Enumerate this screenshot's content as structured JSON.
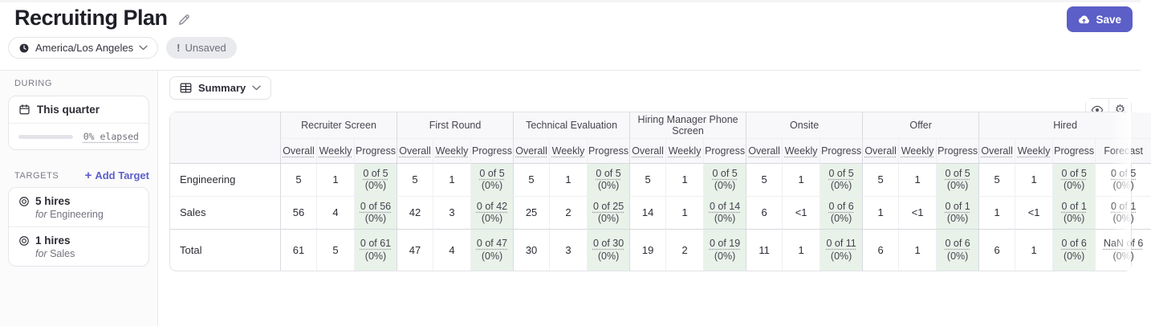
{
  "header": {
    "title": "Recruiting Plan",
    "timezone": "America/Los Angeles",
    "unsaved_prefix": "!",
    "unsaved_label": "Unsaved",
    "save_label": "Save"
  },
  "sidebar": {
    "during": {
      "label": "DURING",
      "period": "This quarter",
      "elapsed_text": "0% elapsed",
      "elapsed_percent": 0
    },
    "targets": {
      "label": "TARGETS",
      "add_label": "Add Target",
      "items": [
        {
          "title": "5 hires",
          "subtitle": {
            "prefix": "for",
            "name": "Engineering"
          }
        },
        {
          "title": "1 hires",
          "subtitle": {
            "prefix": "for",
            "name": "Sales"
          }
        }
      ]
    }
  },
  "toolbar": {
    "view_label": "Summary"
  },
  "table": {
    "stages": [
      "Recruiter Screen",
      "First Round",
      "Technical Evaluation",
      "Hiring Manager Phone Screen",
      "Onsite",
      "Offer",
      "Hired"
    ],
    "subheaders": {
      "overall": "Overall",
      "weekly": "Weekly",
      "progress": "Progress",
      "forecast": "Forecast"
    },
    "rows": [
      {
        "label": "Engineering",
        "cells": [
          {
            "overall": "5",
            "weekly": "1",
            "progress": "0 of 5",
            "pct": "(0%)"
          },
          {
            "overall": "5",
            "weekly": "1",
            "progress": "0 of 5",
            "pct": "(0%)"
          },
          {
            "overall": "5",
            "weekly": "1",
            "progress": "0 of 5",
            "pct": "(0%)"
          },
          {
            "overall": "5",
            "weekly": "1",
            "progress": "0 of 5",
            "pct": "(0%)"
          },
          {
            "overall": "5",
            "weekly": "1",
            "progress": "0 of 5",
            "pct": "(0%)"
          },
          {
            "overall": "5",
            "weekly": "1",
            "progress": "0 of 5",
            "pct": "(0%)"
          },
          {
            "overall": "5",
            "weekly": "1",
            "progress": "0 of 5",
            "pct": "(0%)"
          }
        ],
        "forecast": {
          "value": "0 of 5",
          "pct": "(0%)"
        }
      },
      {
        "label": "Sales",
        "cells": [
          {
            "overall": "56",
            "weekly": "4",
            "progress": "0 of 56",
            "pct": "(0%)"
          },
          {
            "overall": "42",
            "weekly": "3",
            "progress": "0 of 42",
            "pct": "(0%)"
          },
          {
            "overall": "25",
            "weekly": "2",
            "progress": "0 of 25",
            "pct": "(0%)"
          },
          {
            "overall": "14",
            "weekly": "1",
            "progress": "0 of 14",
            "pct": "(0%)"
          },
          {
            "overall": "6",
            "weekly": "<1",
            "progress": "0 of 6",
            "pct": "(0%)"
          },
          {
            "overall": "1",
            "weekly": "<1",
            "progress": "0 of 1",
            "pct": "(0%)"
          },
          {
            "overall": "1",
            "weekly": "<1",
            "progress": "0 of 1",
            "pct": "(0%)"
          }
        ],
        "forecast": {
          "value": "0 of 1",
          "pct": "(0%)"
        }
      },
      {
        "label": "Total",
        "cells": [
          {
            "overall": "61",
            "weekly": "5",
            "progress": "0 of 61",
            "pct": "(0%)"
          },
          {
            "overall": "47",
            "weekly": "4",
            "progress": "0 of 47",
            "pct": "(0%)"
          },
          {
            "overall": "30",
            "weekly": "3",
            "progress": "0 of 30",
            "pct": "(0%)"
          },
          {
            "overall": "19",
            "weekly": "2",
            "progress": "0 of 19",
            "pct": "(0%)"
          },
          {
            "overall": "11",
            "weekly": "1",
            "progress": "0 of 11",
            "pct": "(0%)"
          },
          {
            "overall": "6",
            "weekly": "1",
            "progress": "0 of 6",
            "pct": "(0%)"
          },
          {
            "overall": "6",
            "weekly": "1",
            "progress": "0 of 6",
            "pct": "(0%)"
          }
        ],
        "forecast": {
          "value": "NaN of 6",
          "pct": "(0%)"
        }
      }
    ]
  },
  "colors": {
    "accent": "#5b5fc7",
    "progress_cell_bg": "#e8f2e9",
    "header_bg": "#f8f8fa",
    "border": "#e3e3e8"
  }
}
